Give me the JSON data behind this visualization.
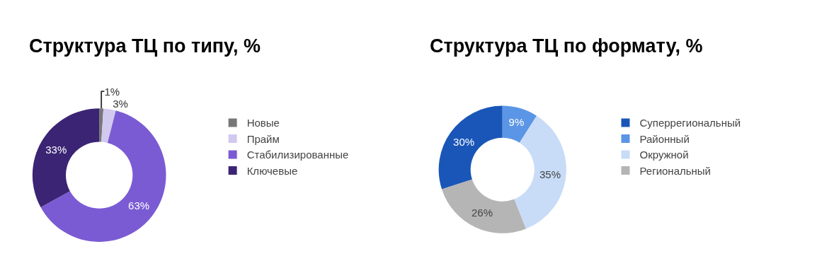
{
  "chart_data": [
    {
      "type": "donut",
      "title": "Структура ТЦ по типу, %",
      "categories": [
        "Новые",
        "Прайм",
        "Стабилизированные",
        "Ключевые"
      ],
      "values": [
        1,
        3,
        63,
        33
      ],
      "colors": [
        "#777777",
        "#d2c9ef",
        "#7a5bd3",
        "#3b2474"
      ],
      "value_labels": [
        "1%",
        "3%",
        "63%",
        "33%"
      ],
      "legend": "right"
    },
    {
      "type": "donut",
      "title": "Структура ТЦ по формату, %",
      "categories": [
        "Суперрегиональный",
        "Районный",
        "Окружной",
        "Региональный"
      ],
      "values": [
        30,
        9,
        35,
        26
      ],
      "colors": [
        "#1a56b8",
        "#5b95e6",
        "#c8dcf7",
        "#b5b5b5"
      ],
      "value_labels": [
        "30%",
        "9%",
        "35%",
        "26%"
      ],
      "legend": "right"
    }
  ]
}
